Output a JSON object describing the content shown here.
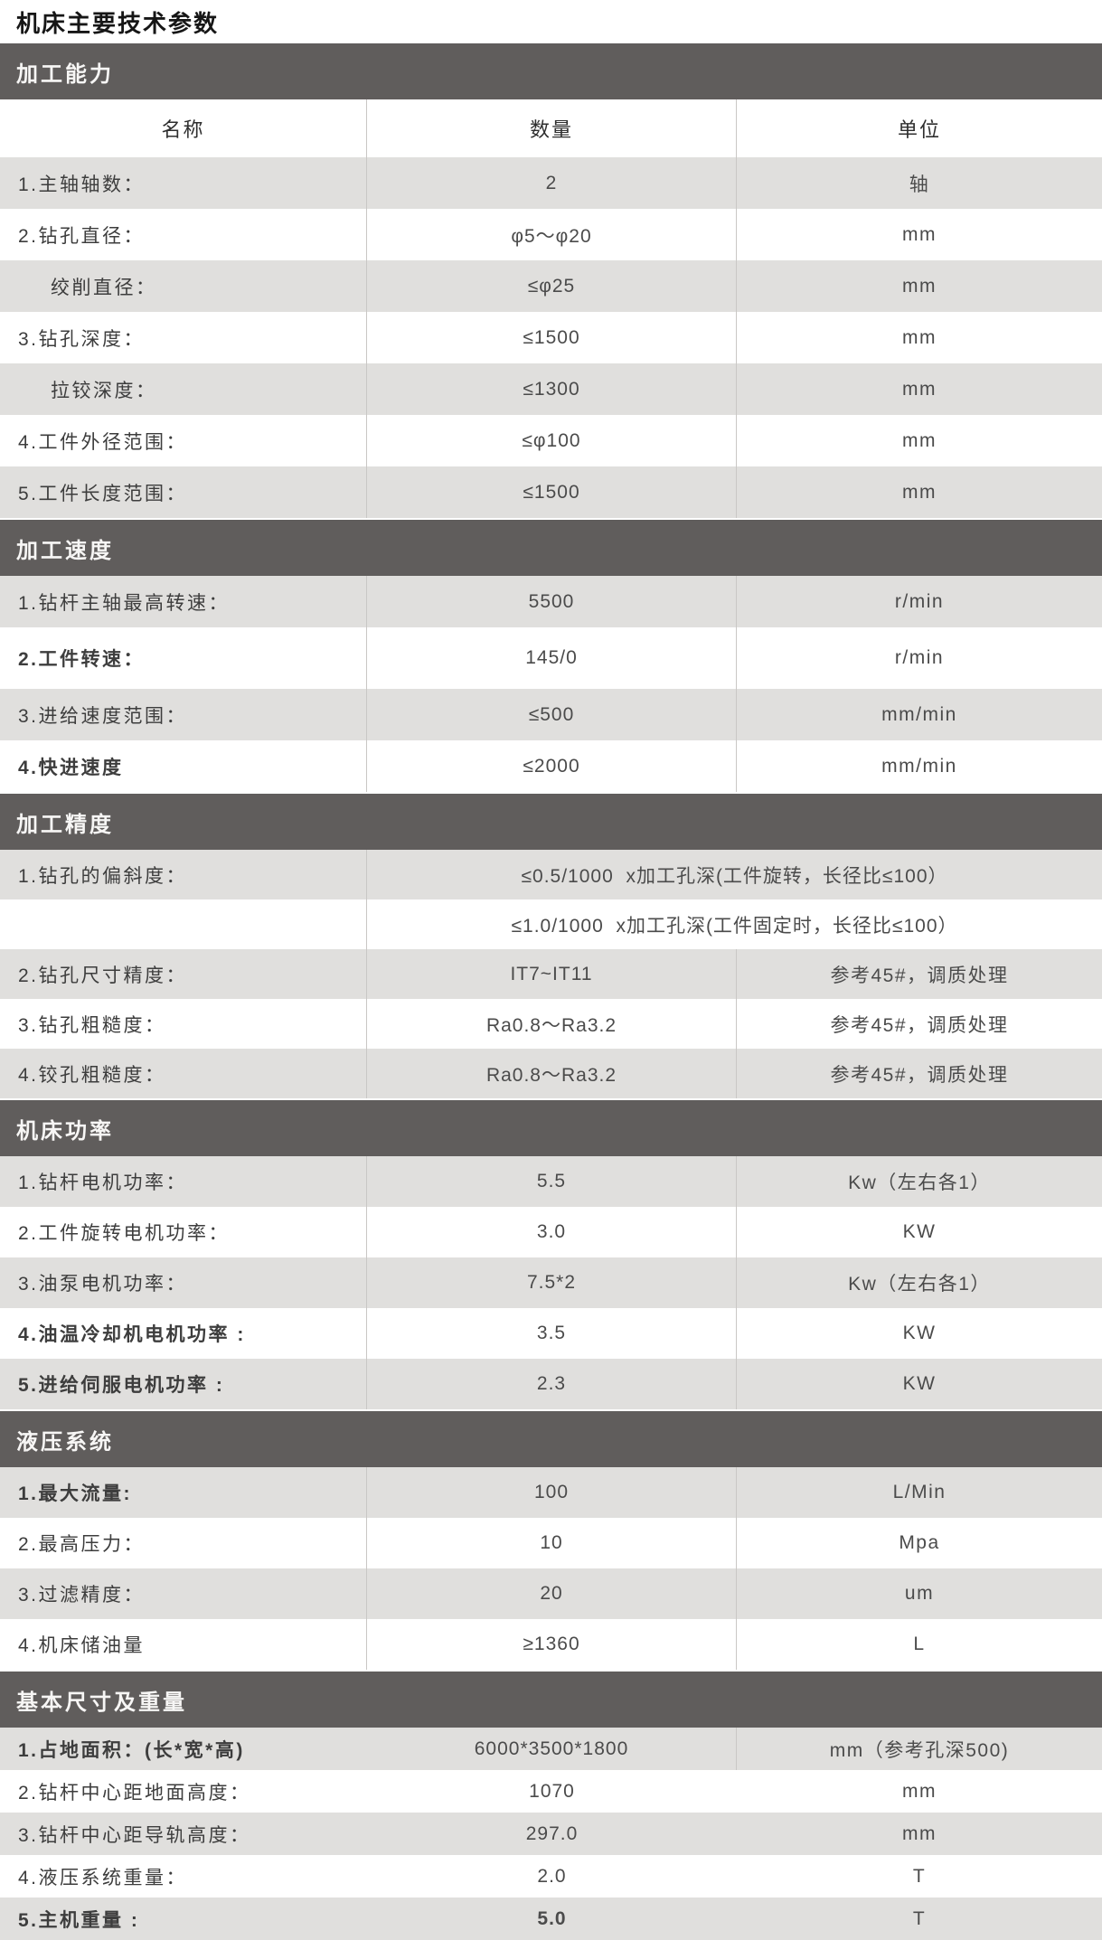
{
  "page": {
    "title": "机床主要技术参数"
  },
  "table": {
    "columns": [
      "名称",
      "数量",
      "单位"
    ],
    "sections": [
      {
        "header": "加工能力",
        "rows": [
          {
            "label": "1.主轴轴数：",
            "value": "2",
            "unit": "轴"
          },
          {
            "label": "2.钻孔直径：",
            "value": "φ5～φ20",
            "unit": "mm"
          },
          {
            "label": "绞削直径：",
            "value": "≤φ25",
            "unit": "mm",
            "indent": true
          },
          {
            "label": "3.钻孔深度：",
            "value": "≤1500",
            "unit": "mm"
          },
          {
            "label": "拉铰深度：",
            "value": "≤1300",
            "unit": "mm",
            "indent": true
          },
          {
            "label": "4.工件外径范围：",
            "value": "≤φ100",
            "unit": "mm"
          },
          {
            "label": "5.工件长度范围：",
            "value": "≤1500",
            "unit": "mm"
          }
        ]
      },
      {
        "header": "加工速度",
        "rows": [
          {
            "label": "1.钻杆主轴最高转速：",
            "value": "5500",
            "unit": "r/min"
          },
          {
            "label": "2.工件转速：",
            "value": "145/0",
            "unit": "r/min",
            "bold": true
          },
          {
            "label": "3.进给速度范围：",
            "value": "≤500",
            "unit": "mm/min"
          },
          {
            "label": "4.快进速度",
            "value": "≤2000",
            "unit": "mm/min",
            "bold": true
          }
        ]
      },
      {
        "header": "加工精度",
        "rows": [
          {
            "label": "1.钻孔的偏斜度：",
            "value": "≤0.5/1000  x加工孔深(工件旋转，长径比≤100）",
            "span": true
          },
          {
            "label": "",
            "value": "≤1.0/1000  x加工孔深(工件固定时，长径比≤100）",
            "span": true
          },
          {
            "label": "2.钻孔尺寸精度：",
            "value": "IT7~IT11",
            "unit": "参考45#，调质处理"
          },
          {
            "label": "3.钻孔粗糙度：",
            "value": "Ra0.8～Ra3.2",
            "unit": "参考45#，调质处理"
          },
          {
            "label": "4.铰孔粗糙度：",
            "value": "Ra0.8～Ra3.2",
            "unit": "参考45#，调质处理"
          }
        ]
      },
      {
        "header": "机床功率",
        "rows": [
          {
            "label": "1.钻杆电机功率：",
            "value": "5.5",
            "unit": "Kw（左右各1）"
          },
          {
            "label": "2.工件旋转电机功率：",
            "value": "3.0",
            "unit": "KW"
          },
          {
            "label": "3.油泵电机功率：",
            "value": "7.5*2",
            "unit": "Kw（左右各1）"
          },
          {
            "label": "4.油温冷却机电机功率 :",
            "value": "3.5",
            "unit": "KW",
            "bold": true
          },
          {
            "label": "5.进给伺服电机功率 :",
            "value": "2.3",
            "unit": "KW",
            "bold": true
          }
        ]
      },
      {
        "header": "液压系统",
        "rows": [
          {
            "label": "1.最大流量:",
            "value": "100",
            "unit": "L/Min",
            "bold": true
          },
          {
            "label": "2.最高压力：",
            "value": "10",
            "unit": "Mpa"
          },
          {
            "label": "3.过滤精度：",
            "value": "20",
            "unit": "um"
          },
          {
            "label": "4.机床储油量",
            "value": "≥1360",
            "unit": "L"
          }
        ]
      },
      {
        "header": "基本尺寸及重量",
        "hide_label_divider": true,
        "unit_divider_first_row_only": true,
        "rows": [
          {
            "label": "1.占地面积：(长*宽*高)",
            "value": "6000*3500*1800",
            "unit": "mm（参考孔深500)",
            "bold": true
          },
          {
            "label": "2.钻杆中心距地面高度：",
            "value": "1070",
            "unit": "mm"
          },
          {
            "label": "3.钻杆中心距导轨高度：",
            "value": "297.0",
            "unit": "mm"
          },
          {
            "label": "4.液压系统重量：",
            "value": "2.0",
            "unit": "T"
          },
          {
            "label": "5.主机重量 :",
            "value": "5.0",
            "unit": "T",
            "bold": true,
            "value_bold": true
          }
        ]
      }
    ]
  }
}
